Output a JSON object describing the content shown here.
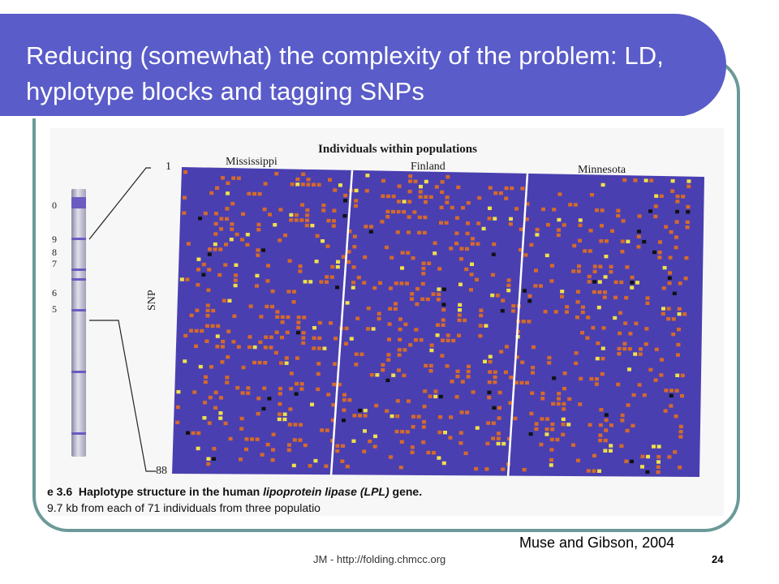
{
  "title": "Reducing (somewhat) the complexity of the problem: LD, hyplotype blocks and tagging SNPs",
  "figure": {
    "header": "Individuals within populations",
    "populations": [
      "Mississippi",
      "Finland",
      "Minnesota"
    ],
    "snp_label": "SNP",
    "top_index": "1",
    "bottom_index": "88",
    "chromosome_ticks": [
      "0",
      "9",
      "8",
      "7",
      "6",
      "5"
    ],
    "caption_line1_prefix": "e 3.6",
    "caption_line1_bold": "Haplotype structure in the human",
    "caption_line1_italic": "lipoprotein lipase (LPL)",
    "caption_line1_suffix": "gene.",
    "caption_line2": "9.7 kb from each of 71 individuals from three populatio",
    "colors": {
      "background": "#4a3fb0",
      "orange": "#d46a2c",
      "yellow": "#f0e04a",
      "black": "#111111"
    }
  },
  "credit": "Muse and Gibson, 2004",
  "footer": "JM - http://folding.chmcc.org",
  "page_number": "24"
}
